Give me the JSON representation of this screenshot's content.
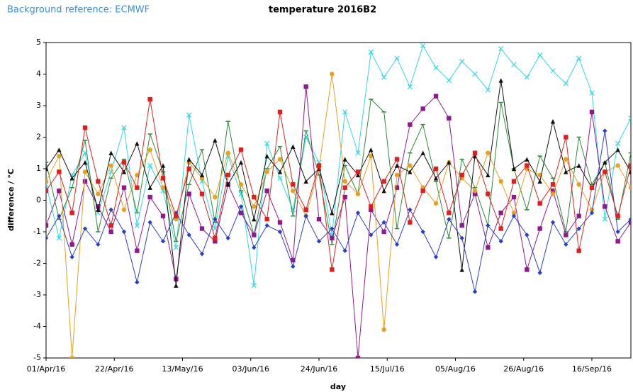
{
  "chart_data": {
    "type": "line",
    "note": "Background reference: ECMWF",
    "title": "temperature 2016B2",
    "xlabel": "day",
    "ylabel": "difference / °C",
    "ylim": [
      -5,
      5
    ],
    "yticks": [
      -5,
      -4,
      -3,
      -2,
      -1,
      0,
      1,
      2,
      3,
      4,
      5
    ],
    "xlim": [
      "2016-04-01",
      "2016-09-28"
    ],
    "xticks": [
      {
        "value": "2016-04-01",
        "label": "01/Apr/16"
      },
      {
        "value": "2016-04-22",
        "label": "22/Apr/16"
      },
      {
        "value": "2016-05-13",
        "label": "13/May/16"
      },
      {
        "value": "2016-06-03",
        "label": "03/Jun/16"
      },
      {
        "value": "2016-06-24",
        "label": "24/Jun/16"
      },
      {
        "value": "2016-07-15",
        "label": "15/Jul/16"
      },
      {
        "value": "2016-08-05",
        "label": "05/Aug/16"
      },
      {
        "value": "2016-08-26",
        "label": "26/Aug/16"
      },
      {
        "value": "2016-09-16",
        "label": "16/Sep/16"
      }
    ],
    "x": [
      "2016-04-01",
      "2016-04-05",
      "2016-04-09",
      "2016-04-13",
      "2016-04-17",
      "2016-04-21",
      "2016-04-25",
      "2016-04-29",
      "2016-05-03",
      "2016-05-07",
      "2016-05-11",
      "2016-05-15",
      "2016-05-19",
      "2016-05-23",
      "2016-05-27",
      "2016-05-31",
      "2016-06-04",
      "2016-06-08",
      "2016-06-12",
      "2016-06-16",
      "2016-06-20",
      "2016-06-24",
      "2016-06-28",
      "2016-07-02",
      "2016-07-06",
      "2016-07-10",
      "2016-07-14",
      "2016-07-18",
      "2016-07-22",
      "2016-07-26",
      "2016-07-30",
      "2016-08-03",
      "2016-08-07",
      "2016-08-11",
      "2016-08-15",
      "2016-08-19",
      "2016-08-23",
      "2016-08-27",
      "2016-08-31",
      "2016-09-04",
      "2016-09-08",
      "2016-09-12",
      "2016-09-16",
      "2016-09-20",
      "2016-09-24",
      "2016-09-28"
    ],
    "series": [
      {
        "color": "#2fd8e8",
        "marker": "cross",
        "values": [
          0.5,
          -1.2,
          0.8,
          1.5,
          -0.4,
          0.9,
          2.3,
          -0.8,
          1.1,
          0.3,
          -1.5,
          2.7,
          0.6,
          -0.9,
          1.4,
          0.2,
          -2.7,
          1.8,
          0.7,
          -0.3,
          2.0,
          1.2,
          -1.1,
          2.8,
          1.5,
          4.7,
          3.9,
          4.5,
          3.6,
          4.9,
          4.2,
          3.8,
          4.4,
          4.0,
          3.5,
          4.8,
          4.3,
          3.9,
          4.6,
          4.1,
          3.7,
          4.5,
          3.4,
          -0.6,
          1.8,
          2.6
        ]
      },
      {
        "color": "#2e8b3a",
        "marker": "dash",
        "values": [
          1.2,
          -0.6,
          0.4,
          1.9,
          -1.0,
          0.7,
          1.3,
          -0.4,
          2.1,
          0.9,
          -1.3,
          0.5,
          1.6,
          -0.7,
          2.5,
          0.3,
          -1.1,
          1.0,
          1.7,
          -0.5,
          2.2,
          0.8,
          -1.4,
          1.1,
          0.2,
          3.2,
          2.8,
          -0.9,
          1.5,
          2.4,
          0.6,
          -1.2,
          1.3,
          0.4,
          -0.8,
          3.1,
          1.0,
          -0.3,
          1.4,
          0.7,
          -1.0,
          2.0,
          0.5,
          1.2,
          -0.6,
          1.5
        ]
      },
      {
        "color": "#8e1a8e",
        "marker": "square",
        "values": [
          -0.8,
          0.3,
          -1.4,
          0.6,
          -0.2,
          -1.0,
          0.4,
          -1.6,
          0.1,
          -0.5,
          -2.5,
          0.2,
          -0.9,
          -1.3,
          0.5,
          -0.4,
          -1.1,
          0.3,
          -0.7,
          -1.9,
          3.6,
          -0.6,
          -1.2,
          0.1,
          -5,
          -0.3,
          -1.0,
          0.4,
          2.4,
          2.9,
          3.3,
          2.6,
          -0.8,
          0.2,
          -1.5,
          -0.4,
          0.1,
          -2.2,
          -0.9,
          0.3,
          -1.1,
          -0.5,
          2.8,
          -0.2,
          -1.3,
          -0.7
        ]
      },
      {
        "color": "#e8a020",
        "marker": "circle",
        "values": [
          0.6,
          1.4,
          -5,
          0.9,
          0.2,
          1.1,
          -0.3,
          0.8,
          1.6,
          0.4,
          -0.6,
          1.2,
          0.7,
          0.1,
          1.5,
          0.5,
          -0.2,
          0.9,
          1.3,
          0.3,
          -0.5,
          1.0,
          4.0,
          0.6,
          0.2,
          1.4,
          -4.1,
          0.8,
          1.1,
          0.4,
          -0.1,
          1.2,
          0.7,
          0.3,
          1.5,
          0.6,
          -0.4,
          1.0,
          0.8,
          0.2,
          1.3,
          0.5,
          -0.3,
          0.9,
          1.1,
          0.4
        ]
      },
      {
        "color": "#111111",
        "marker": "triangle",
        "values": [
          1.0,
          1.6,
          0.7,
          1.2,
          -0.3,
          1.5,
          0.9,
          1.8,
          0.4,
          1.1,
          -2.7,
          1.3,
          0.8,
          1.9,
          0.5,
          1.2,
          -0.6,
          1.4,
          0.9,
          1.7,
          0.6,
          1.0,
          -0.4,
          1.3,
          0.8,
          1.6,
          0.3,
          1.1,
          0.9,
          1.5,
          0.7,
          1.2,
          -2.2,
          1.4,
          0.8,
          3.8,
          1.0,
          1.3,
          0.6,
          2.5,
          0.9,
          1.1,
          0.4,
          1.2,
          1.6,
          0.9
        ]
      },
      {
        "color": "#2a3fc8",
        "marker": "diamond",
        "values": [
          -1.2,
          -0.5,
          -1.8,
          -0.9,
          -1.4,
          -0.3,
          -1.0,
          -2.6,
          -0.7,
          -1.3,
          -0.4,
          -1.1,
          -1.7,
          -0.6,
          -1.2,
          -0.2,
          -1.5,
          -0.8,
          -1.0,
          -2.1,
          -0.5,
          -1.3,
          -0.9,
          -1.6,
          -0.4,
          -1.1,
          -0.7,
          -1.4,
          -0.3,
          -1.0,
          -1.8,
          -0.6,
          -1.2,
          -2.9,
          -0.8,
          -1.3,
          -0.5,
          -1.1,
          -2.3,
          -0.7,
          -1.4,
          -0.9,
          -0.4,
          2.2,
          -1.0,
          -0.6
        ]
      },
      {
        "color": "#e02020",
        "marker": "square",
        "values": [
          0.3,
          0.9,
          -0.4,
          2.3,
          0.6,
          -0.8,
          1.2,
          0.4,
          3.2,
          0.7,
          -0.5,
          1.0,
          0.2,
          -1.2,
          0.8,
          1.6,
          0.1,
          -0.6,
          2.8,
          0.5,
          -0.3,
          1.1,
          -2.2,
          0.4,
          0.9,
          -0.2,
          0.6,
          1.3,
          -0.7,
          0.3,
          1.0,
          -0.4,
          0.8,
          1.5,
          0.2,
          -0.9,
          0.6,
          1.1,
          -0.1,
          0.5,
          2.0,
          -1.6,
          0.4,
          0.9,
          -0.5,
          1.1
        ]
      }
    ]
  }
}
